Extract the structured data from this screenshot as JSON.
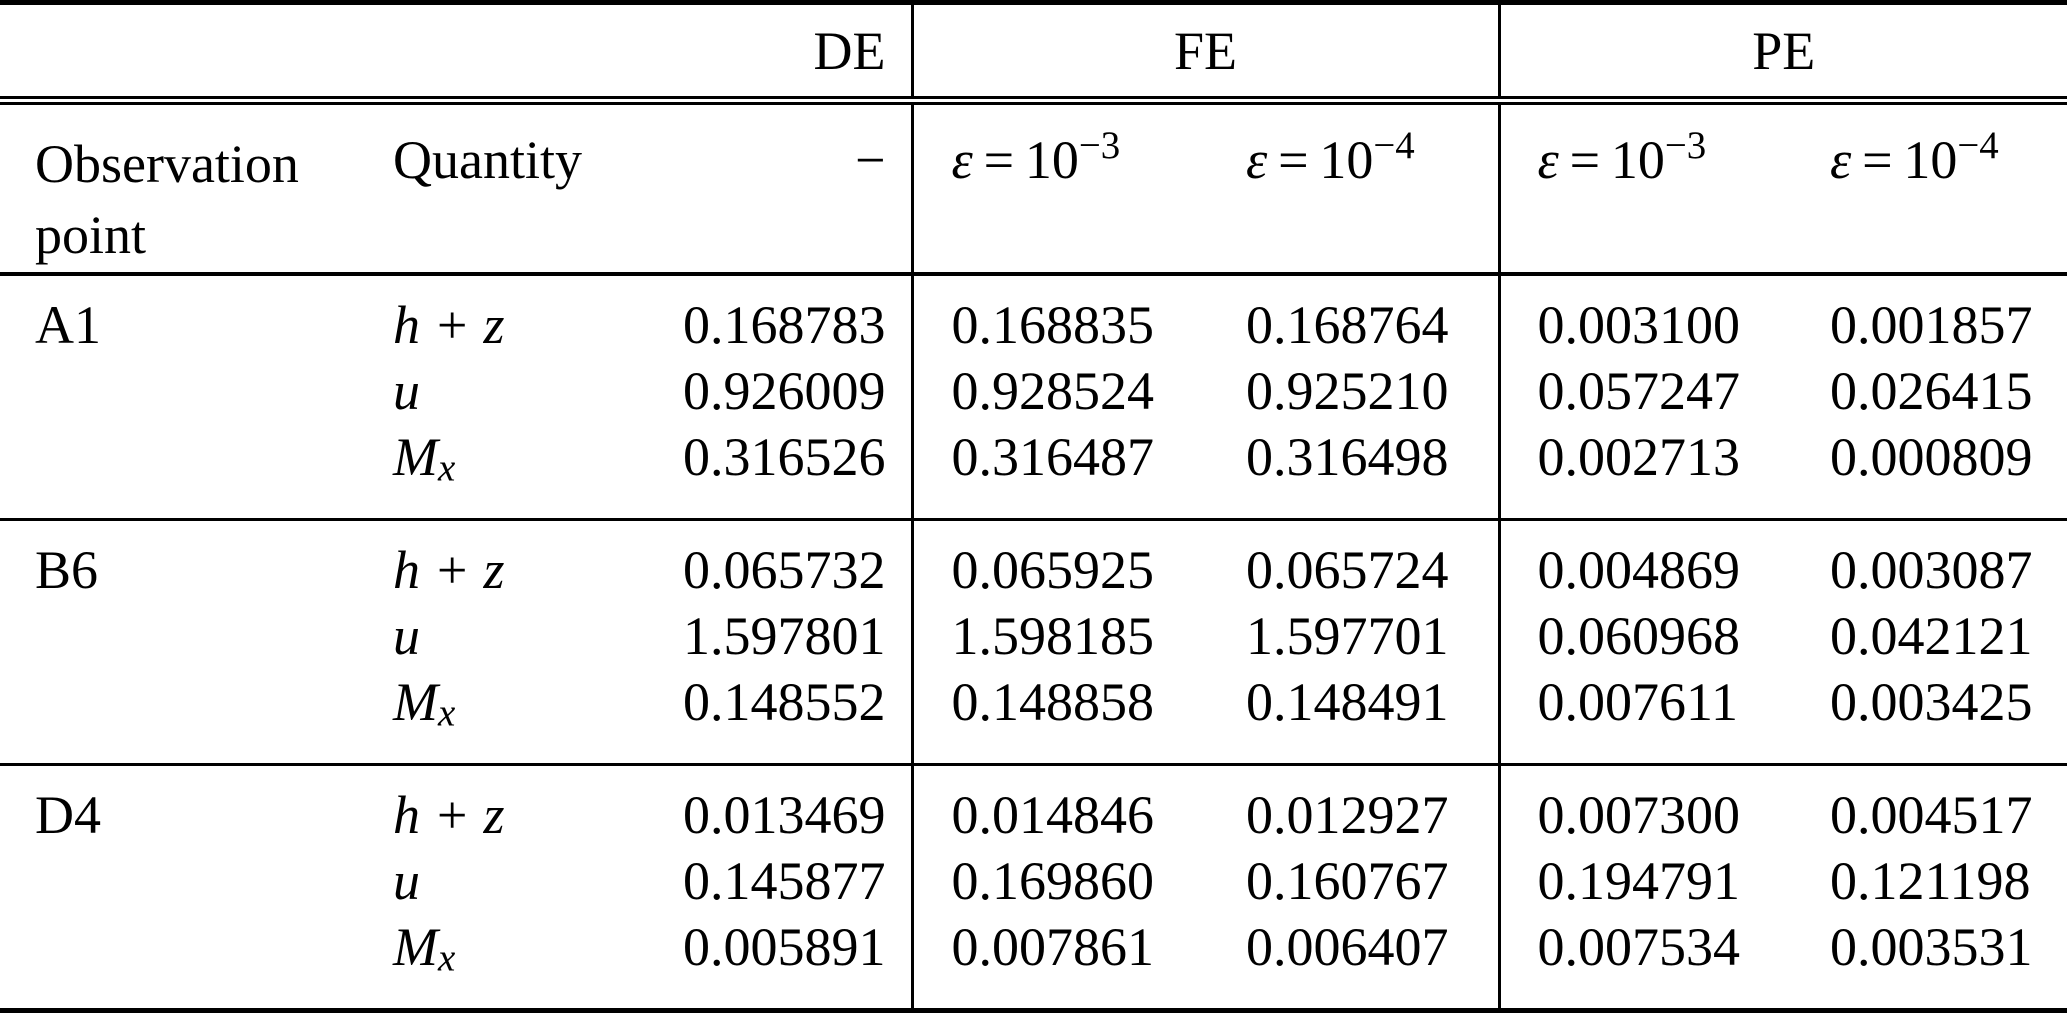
{
  "table": {
    "group_headers": {
      "de": "DE",
      "fe": "FE",
      "pe": "PE"
    },
    "column_headers": {
      "observation_point": "Observation point",
      "quantity": "Quantity",
      "de": "−",
      "fe_eps3": {
        "var": "ε",
        "rel": "=",
        "base": "10",
        "exp": "−3"
      },
      "fe_eps4": {
        "var": "ε",
        "rel": "=",
        "base": "10",
        "exp": "−4"
      },
      "pe_eps3": {
        "var": "ε",
        "rel": "=",
        "base": "10",
        "exp": "−3"
      },
      "pe_eps4": {
        "var": "ε",
        "rel": "=",
        "base": "10",
        "exp": "−4"
      }
    },
    "blocks": [
      {
        "point": "A1",
        "rows": [
          {
            "quantity": {
              "base": "h + z",
              "sub": ""
            },
            "de": "0.168783",
            "fe_eps3": "0.168835",
            "fe_eps4": "0.168764",
            "pe_eps3": "0.003100",
            "pe_eps4": "0.001857"
          },
          {
            "quantity": {
              "base": "u",
              "sub": ""
            },
            "de": "0.926009",
            "fe_eps3": "0.928524",
            "fe_eps4": "0.925210",
            "pe_eps3": "0.057247",
            "pe_eps4": "0.026415"
          },
          {
            "quantity": {
              "base": "M",
              "sub": "x"
            },
            "de": "0.316526",
            "fe_eps3": "0.316487",
            "fe_eps4": "0.316498",
            "pe_eps3": "0.002713",
            "pe_eps4": "0.000809"
          }
        ]
      },
      {
        "point": "B6",
        "rows": [
          {
            "quantity": {
              "base": "h + z",
              "sub": ""
            },
            "de": "0.065732",
            "fe_eps3": "0.065925",
            "fe_eps4": "0.065724",
            "pe_eps3": "0.004869",
            "pe_eps4": "0.003087"
          },
          {
            "quantity": {
              "base": "u",
              "sub": ""
            },
            "de": "1.597801",
            "fe_eps3": "1.598185",
            "fe_eps4": "1.597701",
            "pe_eps3": "0.060968",
            "pe_eps4": "0.042121"
          },
          {
            "quantity": {
              "base": "M",
              "sub": "x"
            },
            "de": "0.148552",
            "fe_eps3": "0.148858",
            "fe_eps4": "0.148491",
            "pe_eps3": "0.007611",
            "pe_eps4": "0.003425"
          }
        ]
      },
      {
        "point": "D4",
        "rows": [
          {
            "quantity": {
              "base": "h + z",
              "sub": ""
            },
            "de": "0.013469",
            "fe_eps3": "0.014846",
            "fe_eps4": "0.012927",
            "pe_eps3": "0.007300",
            "pe_eps4": "0.004517"
          },
          {
            "quantity": {
              "base": "u",
              "sub": ""
            },
            "de": "0.145877",
            "fe_eps3": "0.169860",
            "fe_eps4": "0.160767",
            "pe_eps3": "0.194791",
            "pe_eps4": "0.121198"
          },
          {
            "quantity": {
              "base": "M",
              "sub": "x"
            },
            "de": "0.005891",
            "fe_eps3": "0.007861",
            "fe_eps4": "0.006407",
            "pe_eps3": "0.007534",
            "pe_eps4": "0.003531"
          }
        ]
      }
    ]
  }
}
